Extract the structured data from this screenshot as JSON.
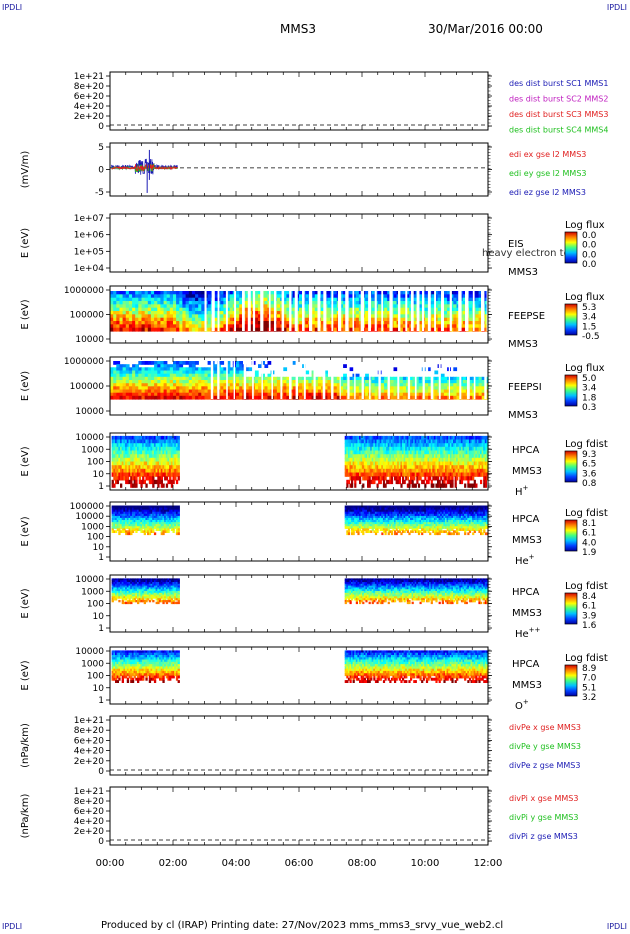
{
  "corners": {
    "tl": "IPDLI",
    "tr": "IPDLI",
    "bl": "IPDLI",
    "br": "IPDLI"
  },
  "header": {
    "mission": "MMS3",
    "datetime": "30/Mar/2016 00:00"
  },
  "footer": {
    "text": "Produced by cl (IRAP)   Printing date: 27/Nov/2023   mms_mms3_srvy_vue_web2.cl"
  },
  "x_axis": {
    "ticks": [
      "00:00",
      "02:00",
      "04:00",
      "06:00",
      "08:00",
      "10:00",
      "12:00"
    ]
  },
  "colors": {
    "red": "#e02020",
    "magenta": "#c020c0",
    "green": "#20c020",
    "blue": "#1a1ab4"
  },
  "chart_data": [
    {
      "type": "line",
      "id": "des-dist",
      "ylabel": "",
      "yticks": [
        "1e+21",
        "8e+20",
        "6e+20",
        "4e+20",
        "2e+20",
        "0"
      ],
      "series": [
        {
          "name": "des dist burst SC1 MMS1",
          "color": "#1a1ab4"
        },
        {
          "name": "des dist burst SC2 MMS2",
          "color": "#c020c0"
        },
        {
          "name": "des dist burst SC3 MMS3",
          "color": "#e02020"
        },
        {
          "name": "des dist burst SC4 MMS4",
          "color": "#20c020"
        }
      ]
    },
    {
      "type": "line",
      "id": "edi-e",
      "ylabel": "(mV/m)",
      "yticks": [
        "5",
        "0",
        "-5"
      ],
      "series": [
        {
          "name": "edi ex gse l2 MMS3",
          "color": "#e02020"
        },
        {
          "name": "edi ey gse l2 MMS3",
          "color": "#20c020"
        },
        {
          "name": "edi ez gse l2 MMS3",
          "color": "#1a1ab4"
        }
      ]
    },
    {
      "type": "heatmap",
      "id": "eis",
      "ylabel": "E (eV)",
      "yticks": [
        "1e+07",
        "1e+06",
        "1e+05",
        "1e+04"
      ],
      "right_labels": [
        "EIS",
        "MMS3"
      ],
      "overlay_label": "heavy electron to",
      "colorbar": {
        "title": "Log flux",
        "ticks": [
          "0.0",
          "0.0",
          "0.0",
          "0.0"
        ]
      }
    },
    {
      "type": "heatmap",
      "id": "feepse",
      "ylabel": "E (eV)",
      "yticks": [
        "1000000",
        "100000",
        "10000"
      ],
      "right_labels": [
        "FEEPSE",
        "MMS3"
      ],
      "colorbar": {
        "title": "Log flux",
        "ticks": [
          "5.3",
          "3.4",
          "1.5",
          "-0.5"
        ]
      }
    },
    {
      "type": "heatmap",
      "id": "feepsi",
      "ylabel": "E (eV)",
      "yticks": [
        "1000000",
        "100000",
        "10000"
      ],
      "right_labels": [
        "FEEPSI",
        "MMS3"
      ],
      "colorbar": {
        "title": "Log flux",
        "ticks": [
          "5.0",
          "3.4",
          "1.8",
          "0.3"
        ]
      }
    },
    {
      "type": "heatmap",
      "id": "hpca-h",
      "ylabel": "E (eV)",
      "yticks": [
        "10000",
        "1000",
        "100",
        "10",
        "1"
      ],
      "right_labels": [
        "HPCA",
        "MMS3",
        "H+"
      ],
      "colorbar": {
        "title": "Log fdist",
        "ticks": [
          "9.3",
          "6.5",
          "3.6",
          "0.8"
        ]
      }
    },
    {
      "type": "heatmap",
      "id": "hpca-he",
      "ylabel": "E (eV)",
      "yticks": [
        "100000",
        "10000",
        "1000",
        "100",
        "10",
        "1"
      ],
      "right_labels": [
        "HPCA",
        "MMS3",
        "He+"
      ],
      "colorbar": {
        "title": "Log fdist",
        "ticks": [
          "8.1",
          "6.1",
          "4.0",
          "1.9"
        ]
      }
    },
    {
      "type": "heatmap",
      "id": "hpca-hepp",
      "ylabel": "E (eV)",
      "yticks": [
        "10000",
        "1000",
        "100",
        "10",
        "1"
      ],
      "right_labels": [
        "HPCA",
        "MMS3",
        "He++"
      ],
      "colorbar": {
        "title": "Log fdist",
        "ticks": [
          "8.4",
          "6.1",
          "3.9",
          "1.6"
        ]
      }
    },
    {
      "type": "heatmap",
      "id": "hpca-o",
      "ylabel": "E (eV)",
      "yticks": [
        "10000",
        "1000",
        "100",
        "10",
        "1"
      ],
      "right_labels": [
        "HPCA",
        "MMS3",
        "O+"
      ],
      "colorbar": {
        "title": "Log fdist",
        "ticks": [
          "8.9",
          "7.0",
          "5.1",
          "3.2"
        ]
      }
    },
    {
      "type": "line",
      "id": "divpe",
      "ylabel": "(nPa/km)",
      "yticks": [
        "1e+21",
        "8e+20",
        "6e+20",
        "4e+20",
        "2e+20",
        "0"
      ],
      "series": [
        {
          "name": "divPe x gse MMS3",
          "color": "#e02020"
        },
        {
          "name": "divPe y gse MMS3",
          "color": "#20c020"
        },
        {
          "name": "divPe z gse MMS3",
          "color": "#1a1ab4"
        }
      ]
    },
    {
      "type": "line",
      "id": "divpi",
      "ylabel": "(nPa/km)",
      "yticks": [
        "1e+21",
        "8e+20",
        "6e+20",
        "4e+20",
        "2e+20",
        "0"
      ],
      "series": [
        {
          "name": "divPi x gse MMS3",
          "color": "#e02020"
        },
        {
          "name": "divPi y gse MMS3",
          "color": "#20c020"
        },
        {
          "name": "divPi z gse MMS3",
          "color": "#1a1ab4"
        }
      ]
    }
  ]
}
